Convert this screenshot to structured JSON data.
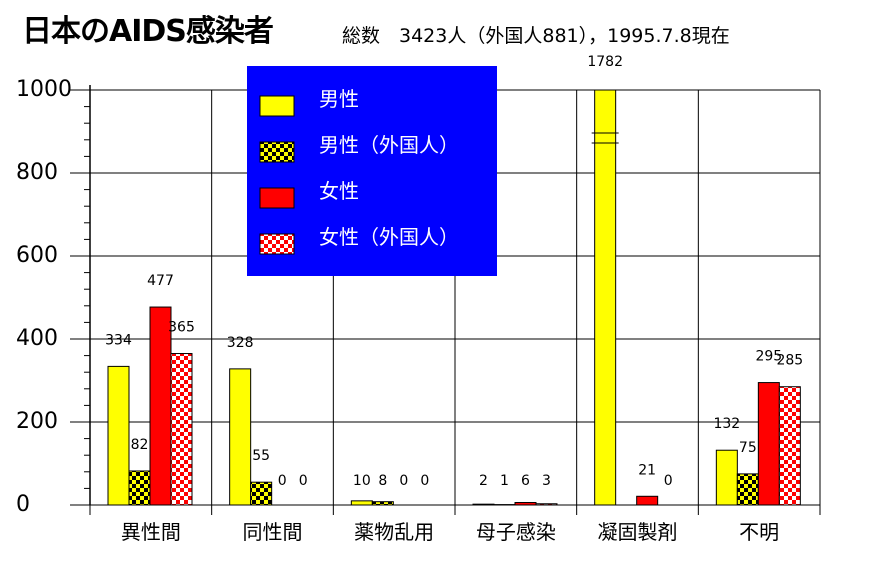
{
  "chart_data": {
    "type": "bar",
    "title": "日本のAIDS感染者",
    "subtitle": "総数　3423人（外国人881），1995.7.8現在",
    "categories": [
      "異性間",
      "同性間",
      "薬物乱用",
      "母子感染",
      "凝固製剤",
      "不明"
    ],
    "series": [
      {
        "name": "男性",
        "values": [
          334,
          328,
          10,
          2,
          1782,
          132
        ],
        "color": "#ffff00",
        "pattern": "solid"
      },
      {
        "name": "男性（外国人）",
        "values": [
          82,
          55,
          8,
          1,
          0,
          75
        ],
        "color": "#ffff00",
        "pattern": "checker-black"
      },
      {
        "name": "女性",
        "values": [
          477,
          0,
          0,
          6,
          21,
          295
        ],
        "color": "#ff0000",
        "pattern": "solid"
      },
      {
        "name": "女性（外国人）",
        "values": [
          365,
          0,
          0,
          3,
          0,
          285
        ],
        "color": "#ff0000",
        "pattern": "checker-white"
      }
    ],
    "data_labels": [
      [
        "334",
        "82",
        "477",
        "365"
      ],
      [
        "328",
        "55",
        "0",
        "0"
      ],
      [
        "10",
        "8",
        "0",
        "0"
      ],
      [
        "2",
        "1",
        "6",
        "3"
      ],
      [
        "1782",
        "",
        "21",
        "0"
      ],
      [
        "132",
        "75",
        "295",
        "285"
      ]
    ],
    "y_ticks": [
      "0",
      "200",
      "400",
      "600",
      "800",
      "1000"
    ],
    "ylim": [
      0,
      1000
    ],
    "axis_break": {
      "category_index": 4,
      "series_index": 0
    },
    "grid": true,
    "legend": {
      "placement": "top-left",
      "background": "#0000ff",
      "text_color": "#ffffff"
    }
  }
}
